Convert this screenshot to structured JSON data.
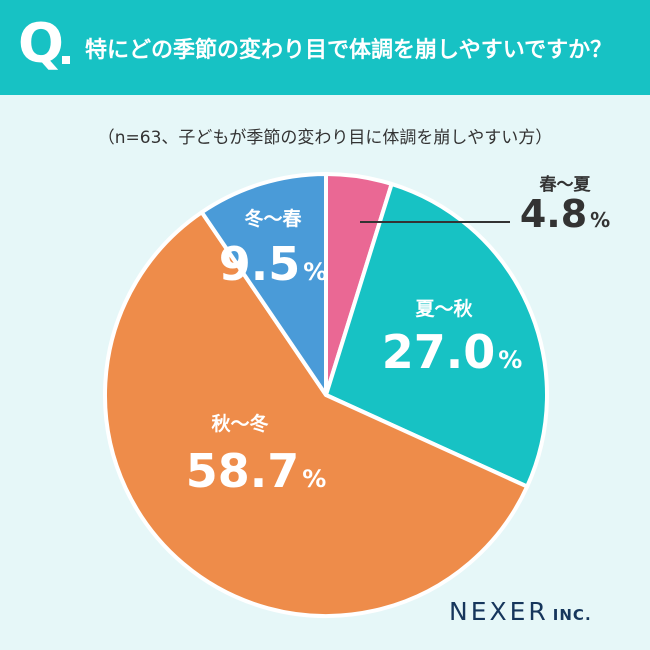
{
  "header": {
    "q_mark": "Q",
    "question": "特にどの季節の変わり目で体調を崩しやすいですか？"
  },
  "subtitle": "（n=63、子どもが季節の変わり目に体調を崩しやすい方）",
  "chart_data": {
    "type": "pie",
    "title": "特にどの季節の変わり目で体調を崩しやすいですか？",
    "unit": "%",
    "start_angle": "12 o'clock, clockwise",
    "slices": [
      {
        "label": "春〜夏",
        "value": 4.8,
        "display": "4.8",
        "color": "#ea6894"
      },
      {
        "label": "夏〜秋",
        "value": 27.0,
        "display": "27.0",
        "color": "#17c2c4"
      },
      {
        "label": "秋〜冬",
        "value": 58.7,
        "display": "58.7",
        "color": "#ee8c4a"
      },
      {
        "label": "冬〜春",
        "value": 9.5,
        "display": "9.5",
        "color": "#4a9bd8"
      }
    ]
  },
  "brand": {
    "main": "NEXER",
    "suffix": "INC."
  }
}
